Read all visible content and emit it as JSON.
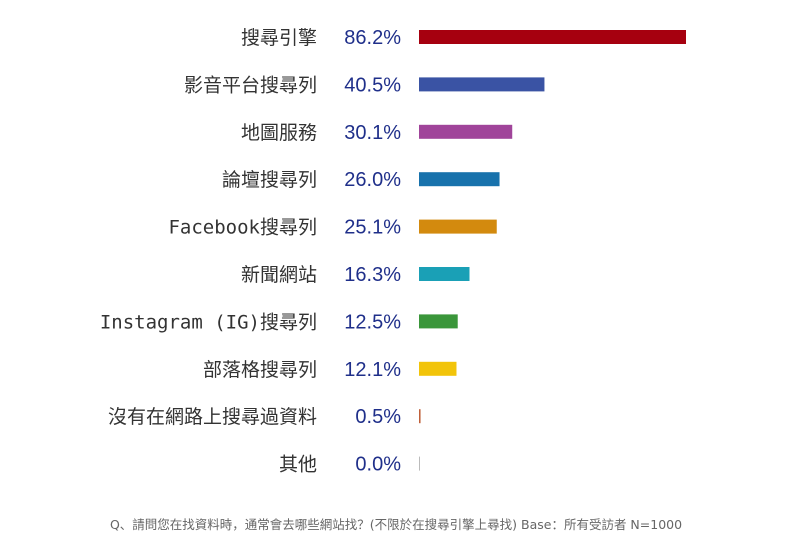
{
  "chart_data": {
    "type": "bar",
    "orientation": "horizontal",
    "categories": [
      "搜尋引擎",
      "影音平台搜尋列",
      "地圖服務",
      "論壇搜尋列",
      "Facebook搜尋列",
      "新聞網站",
      "Instagram (IG)搜尋列",
      "部落格搜尋列",
      "沒有在網路上搜尋過資料",
      "其他"
    ],
    "values": [
      86.2,
      40.5,
      30.1,
      26.0,
      25.1,
      16.3,
      12.5,
      12.1,
      0.5,
      0.0
    ],
    "value_labels": [
      "86.2%",
      "40.5%",
      "30.1%",
      "26.0%",
      "25.1%",
      "16.3%",
      "12.5%",
      "12.1%",
      "0.5%",
      "0.0%"
    ],
    "colors": [
      "#a6000f",
      "#3a53a4",
      "#a0449a",
      "#1872ac",
      "#d38a0e",
      "#1aa0b6",
      "#3a963a",
      "#f2c40a",
      "#c0603a",
      "#bbbbbb"
    ],
    "xlim": [
      0,
      100
    ],
    "grid": false,
    "legend": "none"
  },
  "footnote": "Q、請問您在找資料時，通常會去哪些網站找？(不限於在搜尋引擎上尋找) Base：所有受訪者 N=1000"
}
